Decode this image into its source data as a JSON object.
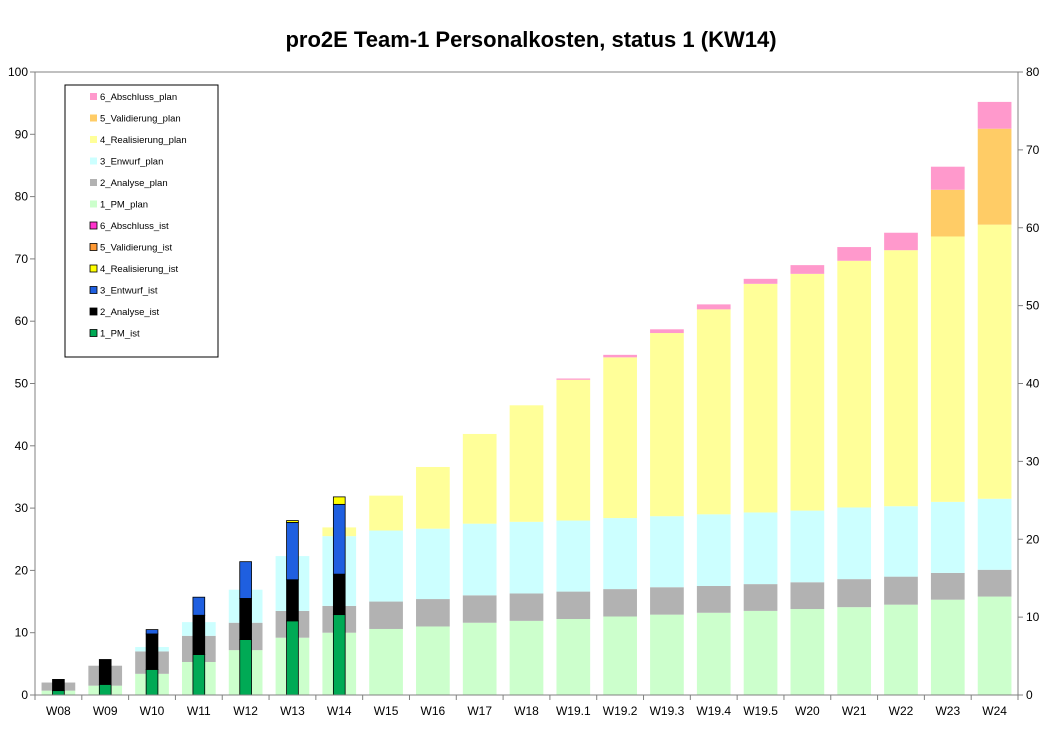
{
  "chart_data": {
    "type": "bar",
    "stacked": true,
    "title": "pro2E Team-1 Personalkosten, status 1 (KW14)",
    "categories": [
      "W08",
      "W09",
      "W10",
      "W11",
      "W12",
      "W13",
      "W14",
      "W15",
      "W16",
      "W17",
      "W18",
      "W19.1",
      "W19.2",
      "W19.3",
      "W19.4",
      "W19.5",
      "W20",
      "W21",
      "W22",
      "W23",
      "W24"
    ],
    "ylim": [
      0,
      100
    ],
    "yticks": [
      0,
      10,
      20,
      30,
      40,
      50,
      60,
      70,
      80,
      90,
      100
    ],
    "y2lim": [
      0,
      80
    ],
    "y2ticks": [
      0,
      10,
      20,
      30,
      40,
      50,
      60,
      70,
      80
    ],
    "grid": false,
    "legend_position": "top-left",
    "plan_series": [
      {
        "name": "1_PM_plan",
        "color": "#ccffcc",
        "values": [
          0.7,
          1.5,
          3.4,
          5.3,
          7.2,
          9.2,
          10.0,
          10.6,
          11.0,
          11.6,
          11.9,
          12.2,
          12.6,
          12.9,
          13.2,
          13.5,
          13.8,
          14.1,
          14.5,
          15.3,
          15.8
        ]
      },
      {
        "name": "2_Analyse_plan",
        "color": "#b2b2b2",
        "values": [
          1.3,
          3.2,
          3.6,
          4.2,
          4.4,
          4.3,
          4.3,
          4.4,
          4.4,
          4.4,
          4.4,
          4.4,
          4.4,
          4.4,
          4.3,
          4.3,
          4.3,
          4.5,
          4.5,
          4.3,
          4.3
        ]
      },
      {
        "name": "3_Enwurf_plan",
        "color": "#ccffff",
        "values": [
          0,
          0,
          0.7,
          2.2,
          5.3,
          8.8,
          11.2,
          11.4,
          11.3,
          11.5,
          11.5,
          11.4,
          11.4,
          11.4,
          11.5,
          11.5,
          11.5,
          11.5,
          11.3,
          11.4,
          11.4
        ]
      },
      {
        "name": "4_Realisierung_plan",
        "color": "#ffff99",
        "values": [
          0,
          0,
          0,
          0,
          0,
          0,
          1.4,
          5.6,
          9.9,
          14.4,
          18.7,
          22.6,
          25.8,
          29.4,
          32.9,
          36.7,
          38.0,
          39.6,
          41.1,
          42.6,
          44.0
        ]
      },
      {
        "name": "5_Validierung_plan",
        "color": "#ffcc66",
        "values": [
          0,
          0,
          0,
          0,
          0,
          0,
          0,
          0,
          0,
          0,
          0,
          0,
          0,
          0,
          0,
          0,
          0,
          0,
          0,
          7.5,
          15.4
        ]
      },
      {
        "name": "6_Abschluss_plan",
        "color": "#ff99cc",
        "values": [
          0,
          0,
          0,
          0,
          0,
          0,
          0,
          0,
          0,
          0,
          0,
          0.2,
          0.4,
          0.6,
          0.8,
          0.8,
          1.4,
          2.2,
          2.8,
          3.7,
          4.3
        ]
      }
    ],
    "ist_series": [
      {
        "name": "1_PM_ist",
        "color": "#00aa55",
        "values": [
          0.7,
          1.7,
          4.1,
          6.5,
          8.9,
          11.9,
          12.9
        ]
      },
      {
        "name": "2_Analyse_ist",
        "color": "#000000",
        "values": [
          1.8,
          4.0,
          5.7,
          6.3,
          6.6,
          6.6,
          6.5
        ]
      },
      {
        "name": "3_Entwurf_ist",
        "color": "#1f5fe0",
        "values": [
          0,
          0,
          0.7,
          2.9,
          5.9,
          9.2,
          11.2
        ]
      },
      {
        "name": "4_Realisierung_ist",
        "color": "#ffff00",
        "values": [
          0,
          0,
          0,
          0,
          0,
          0.3,
          1.2
        ]
      },
      {
        "name": "5_Validierung_ist",
        "color": "#ff9933",
        "values": [
          0,
          0,
          0,
          0,
          0,
          0,
          0
        ]
      },
      {
        "name": "6_Abschluss_ist",
        "color": "#ff33cc",
        "values": [
          0,
          0,
          0,
          0,
          0,
          0,
          0
        ]
      }
    ],
    "legend": [
      {
        "name": "6_Abschluss_plan",
        "color": "#ff99cc"
      },
      {
        "name": "5_Validierung_plan",
        "color": "#ffcc66"
      },
      {
        "name": "4_Realisierung_plan",
        "color": "#ffff99"
      },
      {
        "name": "3_Enwurf_plan",
        "color": "#ccffff"
      },
      {
        "name": "2_Analyse_plan",
        "color": "#b2b2b2"
      },
      {
        "name": "1_PM_plan",
        "color": "#ccffcc"
      },
      {
        "name": "6_Abschluss_ist",
        "color": "#ff33cc"
      },
      {
        "name": "5_Validierung_ist",
        "color": "#ff9933"
      },
      {
        "name": "4_Realisierung_ist",
        "color": "#ffff00"
      },
      {
        "name": "3_Entwurf_ist",
        "color": "#1f5fe0"
      },
      {
        "name": "2_Analyse_ist",
        "color": "#000000"
      },
      {
        "name": "1_PM_ist",
        "color": "#00aa55"
      }
    ]
  }
}
